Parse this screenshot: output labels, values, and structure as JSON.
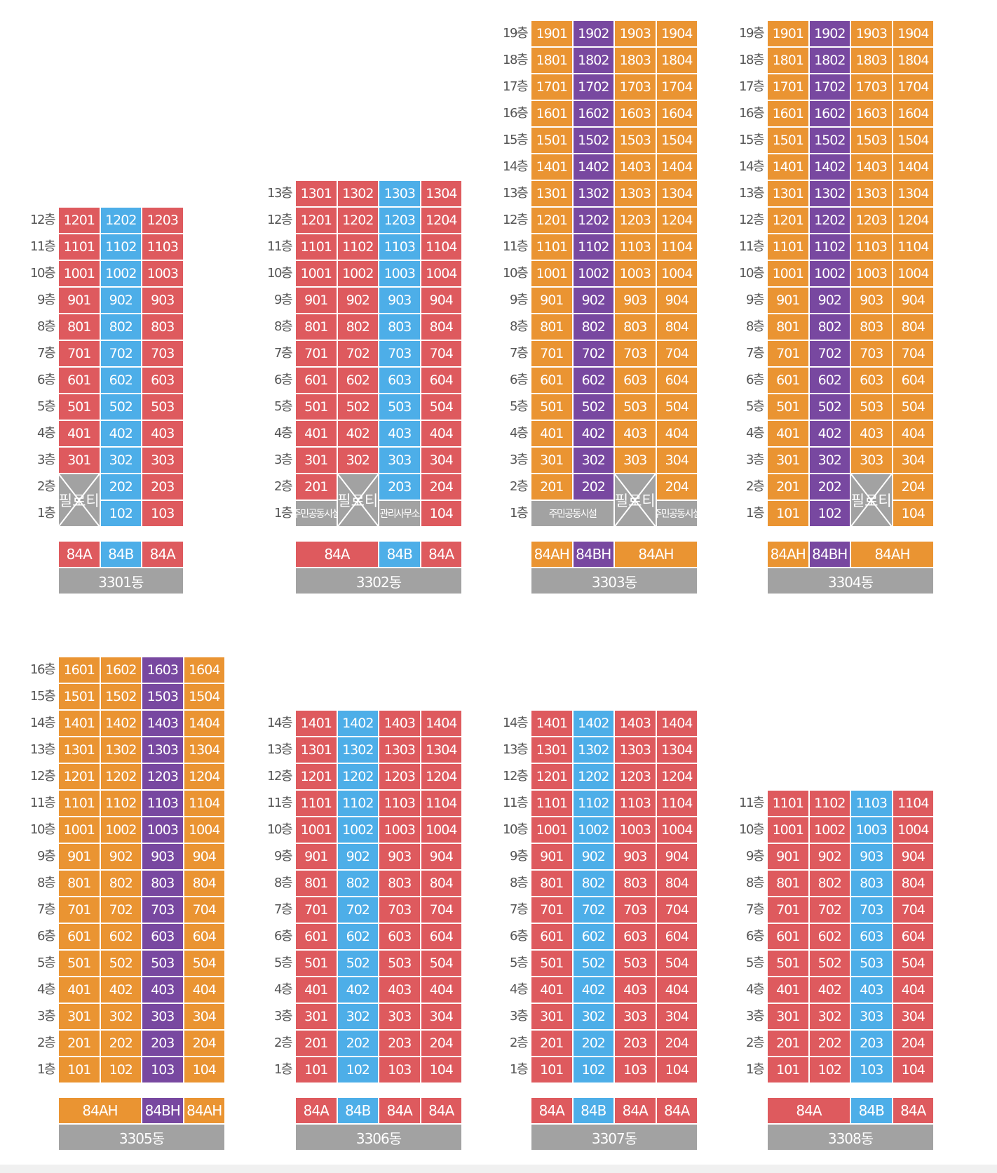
{
  "colors": {
    "84A": "#de5a5e",
    "84B": "#4daee8",
    "84AH": "#ea9432",
    "84BH": "#7848a0",
    "facility": "#a2a2a2"
  },
  "floor_suffix": "층",
  "piloti_label": "필로티",
  "buildings": [
    {
      "name": "3301동",
      "floors": 12,
      "columns": [
        {
          "unit": 1,
          "type": "84A",
          "skip": [
            1,
            2
          ]
        },
        {
          "unit": 2,
          "type": "84B"
        },
        {
          "unit": 3,
          "type": "84A"
        }
      ],
      "ground": [
        {
          "cols": [
            0
          ],
          "kind": "piloti",
          "floors": [
            1,
            2
          ]
        }
      ],
      "type_row": [
        {
          "label": "84A",
          "span": 1,
          "type": "84A"
        },
        {
          "label": "84B",
          "span": 1,
          "type": "84B"
        },
        {
          "label": "84A",
          "span": 1,
          "type": "84A"
        }
      ]
    },
    {
      "name": "3302동",
      "floors": 13,
      "columns": [
        {
          "unit": 1,
          "type": "84A",
          "skip": [
            1
          ]
        },
        {
          "unit": 2,
          "type": "84A",
          "skip": [
            1,
            2
          ]
        },
        {
          "unit": 3,
          "type": "84B",
          "skip": [
            1
          ]
        },
        {
          "unit": 4,
          "type": "84A"
        }
      ],
      "ground": [
        {
          "cols": [
            0
          ],
          "kind": "facility",
          "floors": [
            1
          ],
          "label": "주민공동시설"
        },
        {
          "cols": [
            1
          ],
          "kind": "piloti",
          "floors": [
            1,
            2
          ]
        },
        {
          "cols": [
            2
          ],
          "kind": "facility",
          "floors": [
            1
          ],
          "label": "관리사무소"
        }
      ],
      "type_row": [
        {
          "label": "84A",
          "span": 2,
          "type": "84A"
        },
        {
          "label": "84B",
          "span": 1,
          "type": "84B"
        },
        {
          "label": "84A",
          "span": 1,
          "type": "84A"
        }
      ]
    },
    {
      "name": "3303동",
      "floors": 19,
      "columns": [
        {
          "unit": 1,
          "type": "84AH",
          "skip": [
            1
          ]
        },
        {
          "unit": 2,
          "type": "84BH",
          "skip": [
            1
          ]
        },
        {
          "unit": 3,
          "type": "84AH",
          "skip": [
            1,
            2
          ]
        },
        {
          "unit": 4,
          "type": "84AH",
          "skip": [
            1
          ]
        }
      ],
      "ground": [
        {
          "cols": [
            0,
            1
          ],
          "kind": "facility",
          "floors": [
            1
          ],
          "label": "주민공동시설"
        },
        {
          "cols": [
            2
          ],
          "kind": "piloti",
          "floors": [
            1,
            2
          ]
        },
        {
          "cols": [
            3
          ],
          "kind": "facility",
          "floors": [
            1
          ],
          "label": "주민공동시설"
        }
      ],
      "type_row": [
        {
          "label": "84AH",
          "span": 1,
          "type": "84AH"
        },
        {
          "label": "84BH",
          "span": 1,
          "type": "84BH"
        },
        {
          "label": "84AH",
          "span": 2,
          "type": "84AH"
        }
      ]
    },
    {
      "name": "3304동",
      "floors": 19,
      "columns": [
        {
          "unit": 1,
          "type": "84AH"
        },
        {
          "unit": 2,
          "type": "84BH"
        },
        {
          "unit": 3,
          "type": "84AH",
          "skip": [
            1,
            2
          ]
        },
        {
          "unit": 4,
          "type": "84AH"
        }
      ],
      "ground": [
        {
          "cols": [
            2
          ],
          "kind": "piloti",
          "floors": [
            1,
            2
          ]
        }
      ],
      "type_row": [
        {
          "label": "84AH",
          "span": 1,
          "type": "84AH"
        },
        {
          "label": "84BH",
          "span": 1,
          "type": "84BH"
        },
        {
          "label": "84AH",
          "span": 2,
          "type": "84AH"
        }
      ]
    },
    {
      "name": "3305동",
      "floors": 16,
      "columns": [
        {
          "unit": 1,
          "type": "84AH"
        },
        {
          "unit": 2,
          "type": "84AH"
        },
        {
          "unit": 3,
          "type": "84BH"
        },
        {
          "unit": 4,
          "type": "84AH"
        }
      ],
      "ground": [],
      "type_row": [
        {
          "label": "84AH",
          "span": 2,
          "type": "84AH"
        },
        {
          "label": "84BH",
          "span": 1,
          "type": "84BH"
        },
        {
          "label": "84AH",
          "span": 1,
          "type": "84AH"
        }
      ]
    },
    {
      "name": "3306동",
      "floors": 14,
      "columns": [
        {
          "unit": 1,
          "type": "84A"
        },
        {
          "unit": 2,
          "type": "84B"
        },
        {
          "unit": 3,
          "type": "84A"
        },
        {
          "unit": 4,
          "type": "84A"
        }
      ],
      "ground": [],
      "type_row": [
        {
          "label": "84A",
          "span": 1,
          "type": "84A"
        },
        {
          "label": "84B",
          "span": 1,
          "type": "84B"
        },
        {
          "label": "84A",
          "span": 1,
          "type": "84A"
        },
        {
          "label": "84A",
          "span": 1,
          "type": "84A"
        }
      ]
    },
    {
      "name": "3307동",
      "floors": 14,
      "columns": [
        {
          "unit": 1,
          "type": "84A"
        },
        {
          "unit": 2,
          "type": "84B"
        },
        {
          "unit": 3,
          "type": "84A"
        },
        {
          "unit": 4,
          "type": "84A"
        }
      ],
      "ground": [],
      "type_row": [
        {
          "label": "84A",
          "span": 1,
          "type": "84A"
        },
        {
          "label": "84B",
          "span": 1,
          "type": "84B"
        },
        {
          "label": "84A",
          "span": 1,
          "type": "84A"
        },
        {
          "label": "84A",
          "span": 1,
          "type": "84A"
        }
      ]
    },
    {
      "name": "3308동",
      "floors": 11,
      "columns": [
        {
          "unit": 1,
          "type": "84A"
        },
        {
          "unit": 2,
          "type": "84A"
        },
        {
          "unit": 3,
          "type": "84B"
        },
        {
          "unit": 4,
          "type": "84A"
        }
      ],
      "ground": [],
      "type_row": [
        {
          "label": "84A",
          "span": 2,
          "type": "84A"
        },
        {
          "label": "84B",
          "span": 1,
          "type": "84B"
        },
        {
          "label": "84A",
          "span": 1,
          "type": "84A"
        }
      ]
    }
  ]
}
